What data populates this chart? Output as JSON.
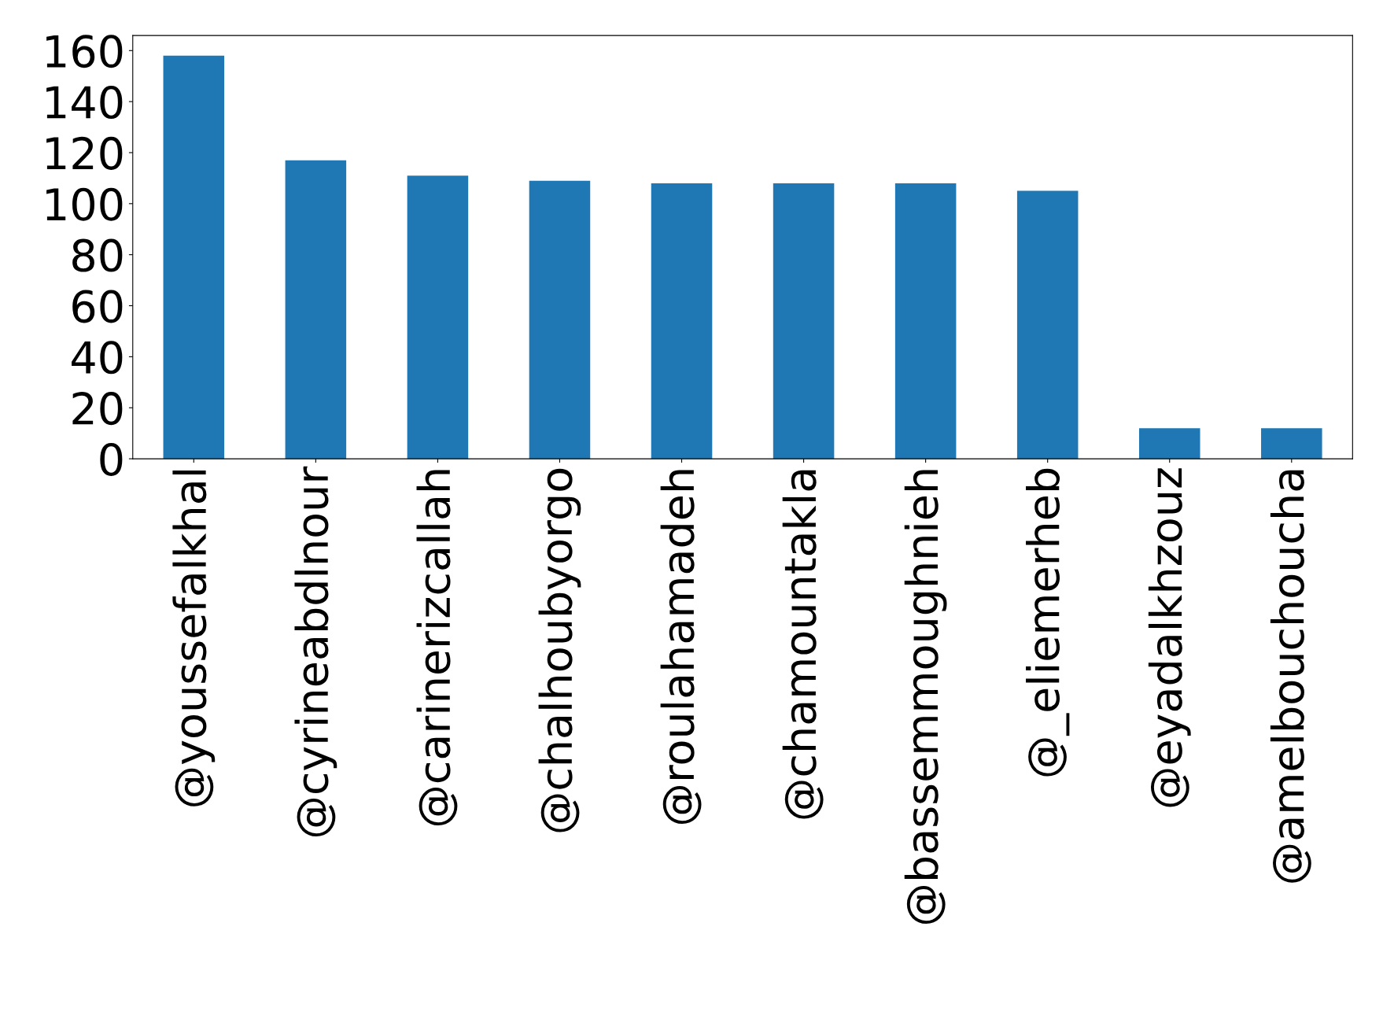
{
  "chart_data": {
    "type": "bar",
    "categories": [
      "@youssefalkhal",
      "@cyrineabdlnour",
      "@carinerizcallah",
      "@chalhoubyorgo",
      "@roulahamadeh",
      "@chamountakla",
      "@bassemmoughnieh",
      "@_eliemerheb",
      "@eyadalkhzouz",
      "@amelbouchoucha"
    ],
    "values": [
      158,
      117,
      111,
      109,
      108,
      108,
      108,
      105,
      12,
      12
    ],
    "color": "#1f77b4",
    "ylim": [
      0,
      165.9
    ],
    "yticks": [
      0,
      20,
      40,
      60,
      80,
      100,
      120,
      140,
      160
    ],
    "grid": false,
    "legend": false
  }
}
